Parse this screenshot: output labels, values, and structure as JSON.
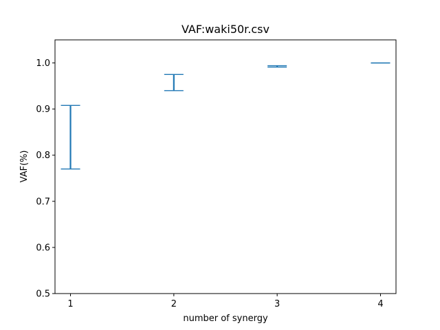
{
  "chart_data": {
    "type": "errorbar",
    "title": "VAF:waki50r.csv",
    "xlabel": "number of synergy",
    "ylabel": "VAF(%)",
    "x": [
      1,
      2,
      3,
      4
    ],
    "xticks": [
      "1",
      "2",
      "3",
      "4"
    ],
    "yticks": [
      "0.5",
      "0.6",
      "0.7",
      "0.8",
      "0.9",
      "1.0"
    ],
    "ylim": [
      0.5,
      1.05
    ],
    "xlim": [
      0.85,
      4.15
    ],
    "series": [
      {
        "color": "#1f77b4",
        "lower": [
          0.77,
          0.94,
          0.991,
          1.0
        ],
        "upper": [
          0.908,
          0.975,
          0.994,
          1.0
        ]
      }
    ],
    "grid": false,
    "legend": "none"
  }
}
